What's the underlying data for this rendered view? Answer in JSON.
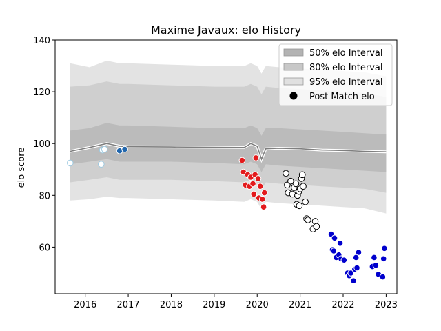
{
  "chart_data": {
    "type": "scatter",
    "title": "Maxime Javaux: elo History",
    "xlabel": "",
    "ylabel": "elo score",
    "xlim": [
      2015.3,
      2023.25
    ],
    "ylim": [
      42,
      140
    ],
    "x_ticks": [
      2016,
      2017,
      2018,
      2019,
      2020,
      2021,
      2022,
      2023
    ],
    "y_ticks": [
      60,
      80,
      100,
      120,
      140
    ],
    "grid": false,
    "legend_position": "top-right",
    "legend": [
      {
        "label": "50% elo Interval",
        "color": "#b3b3b3",
        "kind": "patch"
      },
      {
        "label": "80% elo Interval",
        "color": "#c8c8c8",
        "kind": "patch"
      },
      {
        "label": "95% elo Interval",
        "color": "#e0e0e0",
        "kind": "patch"
      },
      {
        "label": "Post Match elo",
        "color": "#000000",
        "kind": "marker"
      }
    ],
    "band_colors": {
      "b95": "#e3e3e3",
      "b80": "#cfcfcf",
      "b50": "#bbbbbb",
      "line": "#7f7f7f"
    },
    "bands": {
      "x": [
        2015.65,
        2016.1,
        2016.5,
        2016.8,
        2017.0,
        2018.0,
        2019.0,
        2019.7,
        2019.85,
        2020.0,
        2020.1,
        2020.2,
        2020.5,
        2021.0,
        2021.5,
        2022.0,
        2022.5,
        2023.0
      ],
      "mid": [
        97.0,
        98.5,
        100.0,
        99.0,
        98.8,
        98.7,
        98.6,
        98.5,
        100.0,
        99.0,
        94.0,
        98.0,
        98.2,
        98.0,
        97.5,
        97.3,
        97.0,
        96.8
      ],
      "b50": [
        [
          92,
          105
        ],
        [
          93,
          106
        ],
        [
          94,
          108
        ],
        [
          93,
          107
        ],
        [
          93,
          107
        ],
        [
          93,
          106.5
        ],
        [
          92.5,
          106
        ],
        [
          92,
          106
        ],
        [
          93,
          107
        ],
        [
          92,
          106
        ],
        [
          89,
          103
        ],
        [
          92,
          106
        ],
        [
          91.5,
          106
        ],
        [
          91,
          105.5
        ],
        [
          90.5,
          105
        ],
        [
          90,
          104.5
        ],
        [
          89.5,
          104
        ],
        [
          89,
          103.5
        ]
      ],
      "b80": [
        [
          85,
          122
        ],
        [
          86,
          122.5
        ],
        [
          87,
          124
        ],
        [
          86,
          123
        ],
        [
          86,
          123
        ],
        [
          86,
          122.5
        ],
        [
          85.5,
          122
        ],
        [
          85,
          122
        ],
        [
          86,
          123
        ],
        [
          85,
          122
        ],
        [
          82,
          119
        ],
        [
          85,
          122
        ],
        [
          84.5,
          121.5
        ],
        [
          84,
          121
        ],
        [
          83.5,
          120.5
        ],
        [
          83,
          120
        ],
        [
          82.5,
          119.5
        ],
        [
          81,
          118
        ]
      ],
      "b95": [
        [
          78,
          131
        ],
        [
          78.5,
          129.5
        ],
        [
          79.5,
          132
        ],
        [
          79,
          131
        ],
        [
          79,
          131
        ],
        [
          78.5,
          130.5
        ],
        [
          78,
          130
        ],
        [
          77.5,
          130
        ],
        [
          78.5,
          131
        ],
        [
          77.5,
          130
        ],
        [
          74.5,
          127
        ],
        [
          77.5,
          130
        ],
        [
          77,
          129.5
        ],
        [
          76.5,
          129
        ],
        [
          76,
          128.5
        ],
        [
          75.5,
          128
        ],
        [
          75,
          127.5
        ],
        [
          73,
          126
        ]
      ]
    },
    "series": [
      {
        "name": "Post Match elo",
        "points": [
          {
            "x": 2015.65,
            "y": 92.5,
            "color": "#ffffff",
            "edge": "#9ecae1"
          },
          {
            "x": 2016.37,
            "y": 92.0,
            "color": "#ffffff",
            "edge": "#9ecae1"
          },
          {
            "x": 2016.4,
            "y": 97.5,
            "color": "#ffffff",
            "edge": "#9ecae1"
          },
          {
            "x": 2016.45,
            "y": 97.8,
            "color": "#ffffff",
            "edge": "#9ecae1"
          },
          {
            "x": 2016.8,
            "y": 97.2,
            "color": "#2166ac",
            "edge": "#ffffff"
          },
          {
            "x": 2016.92,
            "y": 97.8,
            "color": "#2166ac",
            "edge": "#ffffff"
          },
          {
            "x": 2019.65,
            "y": 93.5,
            "color": "#e31a1c",
            "edge": "#ffffff"
          },
          {
            "x": 2019.68,
            "y": 89.0,
            "color": "#e31a1c",
            "edge": "#ffffff"
          },
          {
            "x": 2019.73,
            "y": 84.0,
            "color": "#e31a1c",
            "edge": "#ffffff"
          },
          {
            "x": 2019.78,
            "y": 88.0,
            "color": "#e31a1c",
            "edge": "#ffffff"
          },
          {
            "x": 2019.82,
            "y": 83.5,
            "color": "#e31a1c",
            "edge": "#ffffff"
          },
          {
            "x": 2019.85,
            "y": 87.0,
            "color": "#e31a1c",
            "edge": "#ffffff"
          },
          {
            "x": 2019.9,
            "y": 84.5,
            "color": "#e31a1c",
            "edge": "#ffffff"
          },
          {
            "x": 2019.92,
            "y": 80.5,
            "color": "#e31a1c",
            "edge": "#ffffff"
          },
          {
            "x": 2019.95,
            "y": 88.0,
            "color": "#e31a1c",
            "edge": "#ffffff"
          },
          {
            "x": 2019.97,
            "y": 94.5,
            "color": "#e31a1c",
            "edge": "#ffffff"
          },
          {
            "x": 2020.02,
            "y": 86.5,
            "color": "#e31a1c",
            "edge": "#ffffff"
          },
          {
            "x": 2020.04,
            "y": 79.0,
            "color": "#e31a1c",
            "edge": "#ffffff"
          },
          {
            "x": 2020.07,
            "y": 83.5,
            "color": "#e31a1c",
            "edge": "#ffffff"
          },
          {
            "x": 2020.12,
            "y": 78.5,
            "color": "#e31a1c",
            "edge": "#ffffff"
          },
          {
            "x": 2020.15,
            "y": 75.5,
            "color": "#e31a1c",
            "edge": "#ffffff"
          },
          {
            "x": 2020.17,
            "y": 81.0,
            "color": "#e31a1c",
            "edge": "#ffffff"
          },
          {
            "x": 2020.67,
            "y": 88.5,
            "color": "#ffffff",
            "edge": "#000000"
          },
          {
            "x": 2020.7,
            "y": 84.0,
            "color": "#ffffff",
            "edge": "#000000"
          },
          {
            "x": 2020.72,
            "y": 81.0,
            "color": "#ffffff",
            "edge": "#000000"
          },
          {
            "x": 2020.78,
            "y": 85.5,
            "color": "#ffffff",
            "edge": "#000000"
          },
          {
            "x": 2020.82,
            "y": 80.5,
            "color": "#ffffff",
            "edge": "#000000"
          },
          {
            "x": 2020.86,
            "y": 83.0,
            "color": "#ffffff",
            "edge": "#000000"
          },
          {
            "x": 2020.9,
            "y": 84.5,
            "color": "#ffffff",
            "edge": "#000000"
          },
          {
            "x": 2020.92,
            "y": 76.5,
            "color": "#ffffff",
            "edge": "#000000"
          },
          {
            "x": 2020.94,
            "y": 80.0,
            "color": "#ffffff",
            "edge": "#000000"
          },
          {
            "x": 2020.97,
            "y": 81.5,
            "color": "#ffffff",
            "edge": "#000000"
          },
          {
            "x": 2020.98,
            "y": 76.0,
            "color": "#ffffff",
            "edge": "#000000"
          },
          {
            "x": 2021.0,
            "y": 82.5,
            "color": "#ffffff",
            "edge": "#000000"
          },
          {
            "x": 2021.03,
            "y": 86.5,
            "color": "#ffffff",
            "edge": "#000000"
          },
          {
            "x": 2021.05,
            "y": 88.0,
            "color": "#ffffff",
            "edge": "#000000"
          },
          {
            "x": 2021.07,
            "y": 83.5,
            "color": "#ffffff",
            "edge": "#000000"
          },
          {
            "x": 2021.12,
            "y": 77.5,
            "color": "#ffffff",
            "edge": "#000000"
          },
          {
            "x": 2021.15,
            "y": 71.0,
            "color": "#ffffff",
            "edge": "#000000"
          },
          {
            "x": 2021.18,
            "y": 70.5,
            "color": "#ffffff",
            "edge": "#000000"
          },
          {
            "x": 2021.3,
            "y": 67.0,
            "color": "#ffffff",
            "edge": "#000000"
          },
          {
            "x": 2021.35,
            "y": 70.0,
            "color": "#ffffff",
            "edge": "#000000"
          },
          {
            "x": 2021.38,
            "y": 68.0,
            "color": "#ffffff",
            "edge": "#000000"
          },
          {
            "x": 2021.72,
            "y": 65.0,
            "color": "#0000cd",
            "edge": "#ffffff"
          },
          {
            "x": 2021.75,
            "y": 59.0,
            "color": "#0000cd",
            "edge": "#ffffff"
          },
          {
            "x": 2021.78,
            "y": 58.5,
            "color": "#0000cd",
            "edge": "#ffffff"
          },
          {
            "x": 2021.8,
            "y": 63.5,
            "color": "#0000cd",
            "edge": "#ffffff"
          },
          {
            "x": 2021.84,
            "y": 56.0,
            "color": "#0000cd",
            "edge": "#ffffff"
          },
          {
            "x": 2021.9,
            "y": 57.0,
            "color": "#0000cd",
            "edge": "#ffffff"
          },
          {
            "x": 2021.93,
            "y": 61.5,
            "color": "#0000cd",
            "edge": "#ffffff"
          },
          {
            "x": 2021.95,
            "y": 55.5,
            "color": "#0000cd",
            "edge": "#ffffff"
          },
          {
            "x": 2022.02,
            "y": 55.0,
            "color": "#0000cd",
            "edge": "#ffffff"
          },
          {
            "x": 2022.1,
            "y": 50.0,
            "color": "#0000cd",
            "edge": "#ffffff"
          },
          {
            "x": 2022.14,
            "y": 49.0,
            "color": "#0000cd",
            "edge": "#ffffff"
          },
          {
            "x": 2022.18,
            "y": 50.0,
            "color": "#0000cd",
            "edge": "#ffffff"
          },
          {
            "x": 2022.24,
            "y": 47.0,
            "color": "#0000cd",
            "edge": "#ffffff"
          },
          {
            "x": 2022.27,
            "y": 51.5,
            "color": "#0000cd",
            "edge": "#ffffff"
          },
          {
            "x": 2022.3,
            "y": 56.0,
            "color": "#0000cd",
            "edge": "#ffffff"
          },
          {
            "x": 2022.32,
            "y": 52.0,
            "color": "#0000cd",
            "edge": "#ffffff"
          },
          {
            "x": 2022.36,
            "y": 58.0,
            "color": "#0000cd",
            "edge": "#ffffff"
          },
          {
            "x": 2022.68,
            "y": 52.5,
            "color": "#0000cd",
            "edge": "#ffffff"
          },
          {
            "x": 2022.72,
            "y": 56.0,
            "color": "#0000cd",
            "edge": "#ffffff"
          },
          {
            "x": 2022.76,
            "y": 53.0,
            "color": "#0000cd",
            "edge": "#ffffff"
          },
          {
            "x": 2022.82,
            "y": 49.5,
            "color": "#0000cd",
            "edge": "#ffffff"
          },
          {
            "x": 2022.92,
            "y": 48.5,
            "color": "#0000cd",
            "edge": "#ffffff"
          },
          {
            "x": 2022.94,
            "y": 55.5,
            "color": "#0000cd",
            "edge": "#ffffff"
          },
          {
            "x": 2022.96,
            "y": 59.5,
            "color": "#0000cd",
            "edge": "#ffffff"
          }
        ]
      }
    ]
  }
}
